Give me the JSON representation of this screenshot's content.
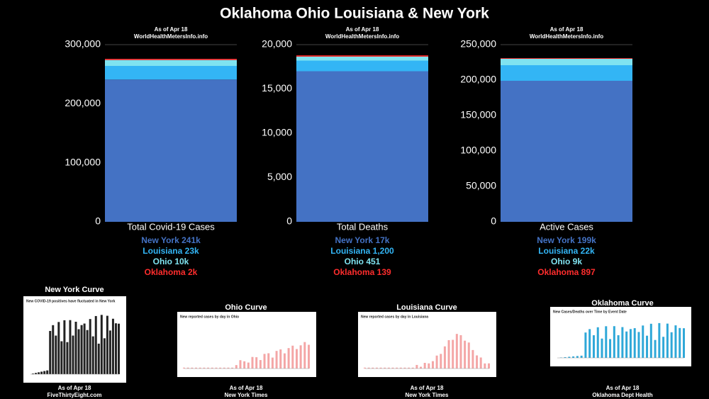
{
  "title": "Oklahoma Ohio Louisiana & New York",
  "chart_data": [
    {
      "type": "stacked_bar",
      "note": "As of Apr 18",
      "source": "WorldHealthMetersInfo.info",
      "categories": [
        "Total Covid-19 Cases"
      ],
      "series": [
        {
          "name": "New York",
          "color": "#4472c4",
          "values": [
            241000
          ],
          "value_labels": [
            "241k"
          ]
        },
        {
          "name": "Louisiana",
          "color": "#33b5f5",
          "values": [
            23000
          ],
          "value_labels": [
            "23k"
          ]
        },
        {
          "name": "Ohio",
          "color": "#7fe3f0",
          "values": [
            10000
          ],
          "value_labels": [
            "10k"
          ]
        },
        {
          "name": "Oklahoma",
          "color": "#ff2d2d",
          "values": [
            2000
          ],
          "value_labels": [
            "2k"
          ]
        }
      ],
      "ylim": [
        0,
        300000
      ],
      "yticks": [
        0,
        {
          "value": 100000,
          "label": "100,000"
        },
        {
          "value": 200000,
          "label": "200,000"
        },
        {
          "value": 300000,
          "label": "300,000"
        }
      ]
    },
    {
      "type": "stacked_bar",
      "note": "As of Apr 18",
      "source": "WorldHealthMetersInfo.info",
      "categories": [
        "Total Deaths"
      ],
      "series": [
        {
          "name": "New York",
          "color": "#4472c4",
          "values": [
            17000
          ],
          "value_labels": [
            "17k"
          ]
        },
        {
          "name": "Louisiana",
          "color": "#33b5f5",
          "values": [
            1200
          ],
          "value_labels": [
            "1,200"
          ]
        },
        {
          "name": "Ohio",
          "color": "#7fe3f0",
          "values": [
            451
          ],
          "value_labels": [
            "451"
          ]
        },
        {
          "name": "Oklahoma",
          "color": "#ff2d2d",
          "values": [
            139
          ],
          "value_labels": [
            "139"
          ]
        }
      ],
      "ylim": [
        0,
        20000
      ],
      "yticks": [
        0,
        {
          "value": 5000,
          "label": "5,000"
        },
        {
          "value": 10000,
          "label": "10,000"
        },
        {
          "value": 15000,
          "label": "15,000"
        },
        {
          "value": 20000,
          "label": "20,000"
        }
      ]
    },
    {
      "type": "stacked_bar",
      "note": "As of Apr 18",
      "source": "WorldHealthMetersInfo.info",
      "categories": [
        "Active Cases"
      ],
      "series": [
        {
          "name": "New York",
          "color": "#4472c4",
          "values": [
            199000
          ],
          "value_labels": [
            "199k"
          ]
        },
        {
          "name": "Louisiana",
          "color": "#33b5f5",
          "values": [
            22000
          ],
          "value_labels": [
            "22k"
          ]
        },
        {
          "name": "Ohio",
          "color": "#7fe3f0",
          "values": [
            9000
          ],
          "value_labels": [
            "9k"
          ]
        },
        {
          "name": "Oklahoma",
          "color": "#ff2d2d",
          "values": [
            897
          ],
          "value_labels": [
            "897"
          ]
        }
      ],
      "ylim": [
        0,
        250000
      ],
      "yticks": [
        0,
        {
          "value": 50000,
          "label": "50,000"
        },
        {
          "value": 100000,
          "label": "100,000"
        },
        {
          "value": 150000,
          "label": "150,000"
        },
        {
          "value": 200000,
          "label": "200,000"
        },
        {
          "value": 250000,
          "label": "250,000"
        }
      ]
    }
  ],
  "curves": [
    {
      "title": "New York Curve",
      "headline": "New COVID-19 positives have fluctuated in New York",
      "note": "As of Apr 18",
      "source": "FiveThirtyEight.com"
    },
    {
      "title": "Ohio Curve",
      "headline": "New reported cases by day in Ohio",
      "note": "As of Apr 18",
      "source": "New York Times"
    },
    {
      "title": "Louisiana Curve",
      "headline": "New reported cases by day in Louisiana",
      "note": "As of Apr 18",
      "source": "New York Times"
    },
    {
      "title": "Oklahoma Curve",
      "headline": "New Cases/Deaths over Time by Event Date",
      "note": "As of Apr 18",
      "source": "Oklahoma Dept Health"
    }
  ]
}
